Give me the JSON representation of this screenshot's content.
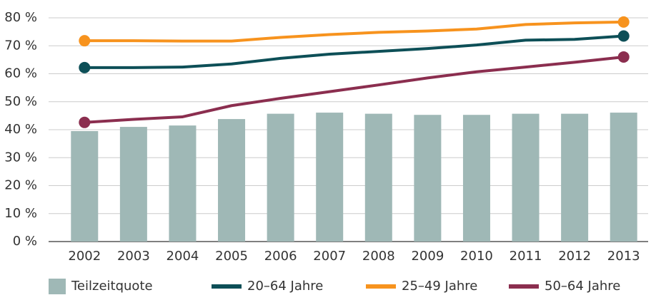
{
  "chart_data": {
    "type": "bar-line",
    "categories": [
      "2002",
      "2003",
      "2004",
      "2005",
      "2006",
      "2007",
      "2008",
      "2009",
      "2010",
      "2011",
      "2012",
      "2013"
    ],
    "bar": {
      "name": "Teilzeitquote",
      "color": "#9fb8b6",
      "values": [
        39.5,
        41,
        41.5,
        43.8,
        45.7,
        46.1,
        45.7,
        45.3,
        45.3,
        45.7,
        45.7,
        46.1
      ]
    },
    "series": [
      {
        "name": "20–64 Jahre",
        "color": "#0d4f57",
        "values": [
          62.2,
          62.2,
          62.4,
          63.5,
          65.5,
          67,
          68,
          69,
          70.3,
          72,
          72.3,
          73.5
        ]
      },
      {
        "name": "25–49 Jahre",
        "color": "#f7931e",
        "values": [
          71.8,
          71.8,
          71.7,
          71.7,
          73,
          74,
          74.8,
          75.3,
          76,
          77.6,
          78.2,
          78.5
        ]
      },
      {
        "name": "50–64 Jahre",
        "color": "#8b2e4f",
        "values": [
          42.6,
          43.7,
          44.6,
          48.6,
          51.2,
          53.6,
          56,
          58.5,
          60.7,
          62.4,
          64.1,
          66
        ]
      }
    ],
    "ylim": [
      0,
      80
    ],
    "yticks": [
      {
        "value": 0,
        "label": "0 %"
      },
      {
        "value": 10,
        "label": "10 %"
      },
      {
        "value": 20,
        "label": "20 %"
      },
      {
        "value": 30,
        "label": "30 %"
      },
      {
        "value": 40,
        "label": "40 %"
      },
      {
        "value": 50,
        "label": "50 %"
      },
      {
        "value": 60,
        "label": "60 %"
      },
      {
        "value": 70,
        "label": "70 %"
      },
      {
        "value": 80,
        "label": "80 %"
      }
    ],
    "grid": true,
    "legend": "bottom"
  }
}
